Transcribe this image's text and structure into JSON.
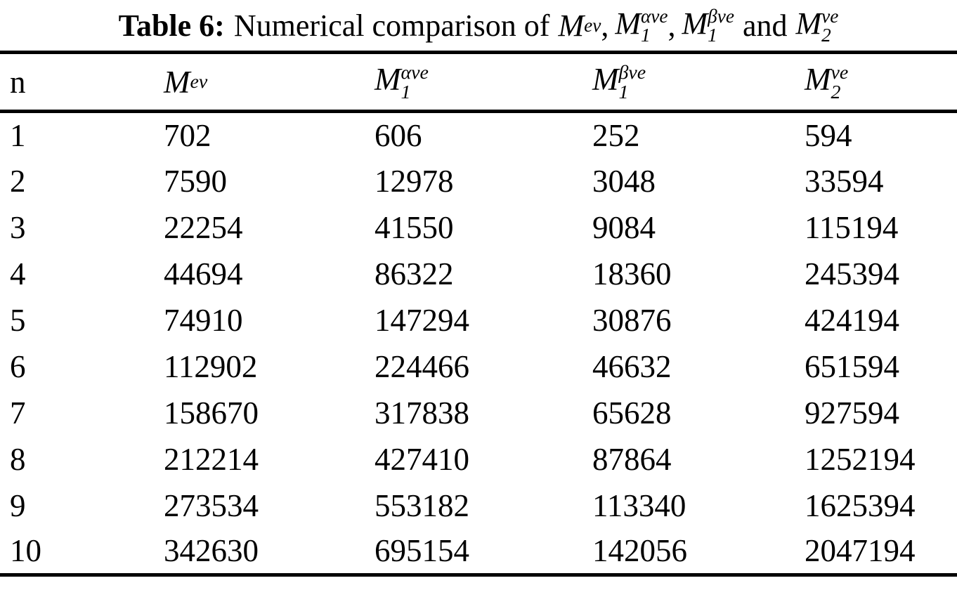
{
  "page": {
    "background": "#ffffff",
    "text_color": "#000000",
    "rule_color": "#000000"
  },
  "title": {
    "label": "Table 6:",
    "lead": "Numerical comparison of",
    "comma": ",",
    "and_word": "and"
  },
  "symbols": {
    "mev": {
      "base": "M",
      "sup": "ev",
      "sub": ""
    },
    "m1ave": {
      "base": "M",
      "sup": "αve",
      "sub": "1"
    },
    "m1bve": {
      "base": "M",
      "sup": "βve",
      "sub": "1"
    },
    "m2ve": {
      "base": "M",
      "sup": "ve",
      "sub": "2"
    }
  },
  "table": {
    "first_column_header": "n",
    "column_keys": [
      "n",
      "mev",
      "m1ave",
      "m1bve",
      "m2ve"
    ],
    "rows": [
      {
        "n": "1",
        "mev": "702",
        "m1ave": "606",
        "m1bve": "252",
        "m2ve": "594"
      },
      {
        "n": "2",
        "mev": "7590",
        "m1ave": "12978",
        "m1bve": "3048",
        "m2ve": "33594"
      },
      {
        "n": "3",
        "mev": "22254",
        "m1ave": "41550",
        "m1bve": "9084",
        "m2ve": "115194"
      },
      {
        "n": "4",
        "mev": "44694",
        "m1ave": "86322",
        "m1bve": "18360",
        "m2ve": "245394"
      },
      {
        "n": "5",
        "mev": "74910",
        "m1ave": "147294",
        "m1bve": "30876",
        "m2ve": "424194"
      },
      {
        "n": "6",
        "mev": "112902",
        "m1ave": "224466",
        "m1bve": "46632",
        "m2ve": "651594"
      },
      {
        "n": "7",
        "mev": "158670",
        "m1ave": "317838",
        "m1bve": "65628",
        "m2ve": "927594"
      },
      {
        "n": "8",
        "mev": "212214",
        "m1ave": "427410",
        "m1bve": "87864",
        "m2ve": "1252194"
      },
      {
        "n": "9",
        "mev": "273534",
        "m1ave": "553182",
        "m1bve": "113340",
        "m2ve": "1625394"
      },
      {
        "n": "10",
        "mev": "342630",
        "m1ave": "695154",
        "m1bve": "142056",
        "m2ve": "2047194"
      }
    ]
  }
}
